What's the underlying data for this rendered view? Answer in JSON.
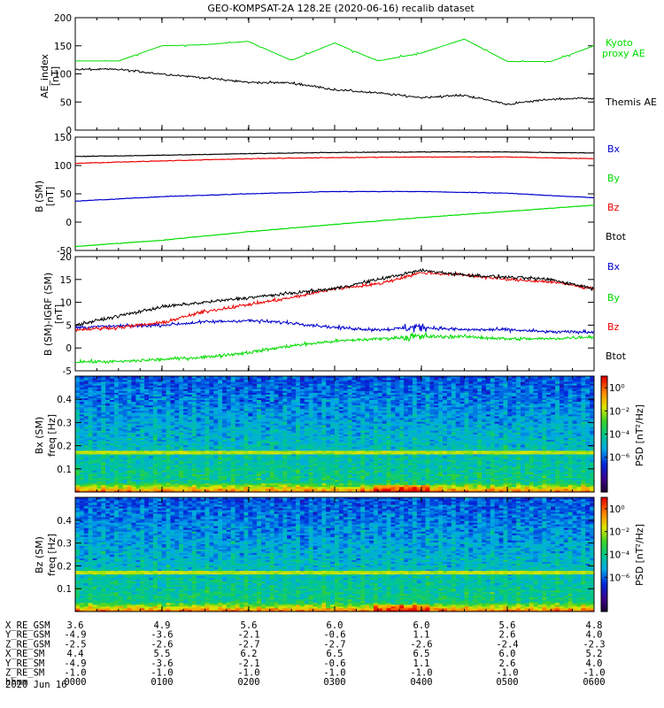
{
  "title": "GEO-KOMPSAT-2A 128.2E (2020-06-16) recalib dataset",
  "colors": {
    "black": "#000000",
    "red": "#ee0000",
    "green": "#00dd00",
    "blue": "#0000cc"
  },
  "chart_data": [
    {
      "type": "line",
      "panel": "ae",
      "ylabel": "AE_index",
      "yunit": "[nT]",
      "ylim": [
        0,
        200
      ],
      "yticks": [
        "0",
        "50",
        "100",
        "150",
        "200"
      ],
      "x": [
        "0000",
        "0030",
        "0100",
        "0130",
        "0200",
        "0230",
        "0300",
        "0330",
        "0400",
        "0430",
        "0500",
        "0530",
        "0600"
      ],
      "series": [
        {
          "name": "Kyoto proxy AE",
          "color": "green",
          "values": [
            123,
            123,
            150,
            152,
            158,
            124,
            155,
            123,
            137,
            162,
            122,
            122,
            150
          ]
        },
        {
          "name": "Themis AE",
          "color": "black",
          "values": [
            108,
            108,
            100,
            93,
            85,
            84,
            72,
            66,
            58,
            62,
            46,
            55,
            57
          ]
        }
      ]
    },
    {
      "type": "line",
      "panel": "bsm",
      "ylabel": "B (SM)",
      "yunit": "[nT]",
      "ylim": [
        -50,
        150
      ],
      "yticks": [
        "-50",
        "0",
        "50",
        "100",
        "150"
      ],
      "x": [
        "0000",
        "0100",
        "0200",
        "0300",
        "0400",
        "0500",
        "0600"
      ],
      "series": [
        {
          "name": "Bx",
          "color": "blue",
          "values": [
            37,
            45,
            50,
            54,
            54,
            51,
            43
          ]
        },
        {
          "name": "By",
          "color": "green",
          "values": [
            -43,
            -32,
            -17,
            -4,
            8,
            19,
            30
          ]
        },
        {
          "name": "Bz",
          "color": "red",
          "values": [
            104,
            108,
            112,
            114,
            115,
            115,
            112
          ]
        },
        {
          "name": "Btot",
          "color": "black",
          "values": [
            116,
            118,
            121,
            123,
            124,
            124,
            122
          ]
        }
      ]
    },
    {
      "type": "line",
      "panel": "bigrf",
      "ylabel": "B (SM)-IGRF (SM)",
      "yunit": "[nT]",
      "ylim": [
        -5,
        20
      ],
      "yticks": [
        "-5",
        "0",
        "5",
        "10",
        "15",
        "20"
      ],
      "x": [
        "0000",
        "0030",
        "0100",
        "0130",
        "0200",
        "0230",
        "0300",
        "0330",
        "0400",
        "0430",
        "0500",
        "0530",
        "0600"
      ],
      "series": [
        {
          "name": "Bx",
          "color": "blue",
          "values": [
            4.5,
            4.8,
            5.0,
            5.7,
            6.0,
            5.5,
            4.5,
            4.0,
            4.5,
            4.0,
            4.0,
            3.5,
            3.5
          ]
        },
        {
          "name": "By",
          "color": "green",
          "values": [
            -3.0,
            -3.0,
            -2.5,
            -2.0,
            -1.0,
            0.5,
            1.5,
            2.0,
            2.5,
            2.5,
            2.0,
            2.0,
            2.5
          ]
        },
        {
          "name": "Bz",
          "color": "red",
          "values": [
            4.0,
            4.5,
            5.5,
            8.0,
            9.5,
            11.0,
            13.0,
            14.0,
            16.5,
            16.0,
            15.0,
            14.5,
            13.0
          ]
        },
        {
          "name": "Btot",
          "color": "black",
          "values": [
            5.0,
            7.0,
            9.0,
            10.0,
            11.0,
            12.0,
            13.0,
            15.0,
            17.0,
            16.0,
            15.5,
            15.0,
            13.0
          ]
        }
      ]
    },
    {
      "type": "heatmap",
      "panel": "specx",
      "ylabel": "Bx (SM)",
      "yunit": "freq [Hz]",
      "ylim": [
        0,
        0.5
      ],
      "yticks": [
        "0.1",
        "0.2",
        "0.3",
        "0.4"
      ],
      "colorbar": {
        "label": "PSD [nT²/Hz]",
        "range": [
          -9,
          1
        ],
        "log": true,
        "ticks": [
          "10⁰",
          "10⁻²",
          "10⁻⁴",
          "10⁻⁶"
        ]
      }
    },
    {
      "type": "heatmap",
      "panel": "specz",
      "ylabel": "Bz (SM)",
      "yunit": "freq [Hz]",
      "ylim": [
        0,
        0.5
      ],
      "yticks": [
        "0.1",
        "0.2",
        "0.3",
        "0.4"
      ],
      "colorbar": {
        "label": "PSD [nT²/Hz]",
        "range": [
          -9,
          1
        ],
        "log": true,
        "ticks": [
          "10⁰",
          "10⁻²",
          "10⁻⁴",
          "10⁻⁶"
        ]
      }
    }
  ],
  "legends": {
    "ae": [
      "Kyoto",
      "proxy AE",
      "Themis AE"
    ],
    "b": [
      "Bx",
      "By",
      "Bz",
      "Btot"
    ]
  },
  "ephemeris": {
    "rows": [
      {
        "label": "X_RE_GSM",
        "values": [
          "3.6",
          "4.9",
          "5.6",
          "6.0",
          "6.0",
          "5.6",
          "4.8"
        ]
      },
      {
        "label": "Y_RE_GSM",
        "values": [
          "-4.9",
          "-3.6",
          "-2.1",
          "-0.6",
          "1.1",
          "2.6",
          "4.0"
        ]
      },
      {
        "label": "Z_RE_GSM",
        "values": [
          "-2.5",
          "-2.6",
          "-2.7",
          "-2.7",
          "-2.6",
          "-2.4",
          "-2.3"
        ]
      },
      {
        "label": "X_RE_SM",
        "values": [
          "4.4",
          "5.5",
          "6.2",
          "6.5",
          "6.5",
          "6.0",
          "5.2"
        ]
      },
      {
        "label": "Y_RE_SM",
        "values": [
          "-4.9",
          "-3.6",
          "-2.1",
          "-0.6",
          "1.1",
          "2.6",
          "4.0"
        ]
      },
      {
        "label": "Z_RE_SM",
        "values": [
          "-1.0",
          "-1.0",
          "-1.0",
          "-1.0",
          "-1.0",
          "-1.0",
          "-1.0"
        ]
      },
      {
        "label": "hhmm",
        "values": [
          "0000",
          "0100",
          "0200",
          "0300",
          "0400",
          "0500",
          "0600"
        ]
      }
    ],
    "date": "2020 Jun 16"
  }
}
